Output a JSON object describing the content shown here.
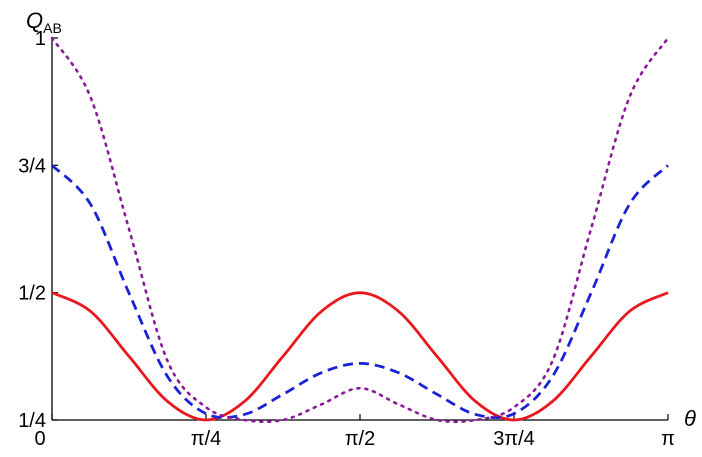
{
  "chart_data": {
    "type": "line",
    "xlabel": "θ",
    "ylabel": {
      "main": "Q",
      "sub": "AB"
    },
    "xlim": [
      0,
      3.14159265
    ],
    "ylim": [
      0.25,
      1.0
    ],
    "x_ticks": [
      {
        "value": 0,
        "label": "0"
      },
      {
        "value": 0.785398,
        "label": "π/4"
      },
      {
        "value": 1.570796,
        "label": "π/2"
      },
      {
        "value": 2.356194,
        "label": "3π/4"
      },
      {
        "value": 3.141593,
        "label": "π"
      }
    ],
    "y_ticks": [
      {
        "value": 0.25,
        "label": "1/4"
      },
      {
        "value": 0.5,
        "label": "1/2"
      },
      {
        "value": 0.75,
        "label": "3/4"
      },
      {
        "value": 1.0,
        "label": "1"
      }
    ],
    "grid": false,
    "legend": "none",
    "series": [
      {
        "style": "solid",
        "color": "#e8191e",
        "x": [
          0,
          0.19635,
          0.392699,
          0.589049,
          0.785398,
          0.981748,
          1.178097,
          1.374447,
          1.570796,
          1.767146,
          1.963495,
          2.159845,
          2.356194,
          2.552544,
          2.748894,
          2.945243,
          3.141593
        ],
        "values": [
          0.5,
          0.4634,
          0.375,
          0.2866,
          0.25,
          0.2866,
          0.375,
          0.4634,
          0.5,
          0.4634,
          0.375,
          0.2866,
          0.25,
          0.2866,
          0.375,
          0.4634,
          0.5
        ]
      },
      {
        "style": "dashed",
        "color": "#1a22d8",
        "x": [
          0,
          0.19635,
          0.392699,
          0.589049,
          0.785398,
          0.981748,
          1.178097,
          1.374447,
          1.570796,
          1.767146,
          1.963495,
          2.159845,
          2.356194,
          2.552544,
          2.748894,
          2.945243,
          3.141593
        ],
        "values": [
          0.75,
          0.6737,
          0.4991,
          0.3354,
          0.2625,
          0.2609,
          0.3005,
          0.3429,
          0.3611,
          0.3429,
          0.3005,
          0.2609,
          0.2625,
          0.3354,
          0.4991,
          0.6737,
          0.75
        ]
      },
      {
        "style": "dotted",
        "color": "#8a1a9b",
        "x": [
          0,
          0.19635,
          0.392699,
          0.589049,
          0.785398,
          0.981748,
          1.178097,
          1.374447,
          1.570796,
          1.767146,
          1.963495,
          2.159845,
          2.356194,
          2.552544,
          2.748894,
          2.945243,
          3.141593
        ],
        "values": [
          1.0,
          0.8839,
          0.625,
          0.3661,
          0.275,
          0.25,
          0.25,
          0.2807,
          0.3125,
          0.2807,
          0.25,
          0.25,
          0.275,
          0.3661,
          0.625,
          0.8839,
          1.0
        ]
      }
    ]
  }
}
